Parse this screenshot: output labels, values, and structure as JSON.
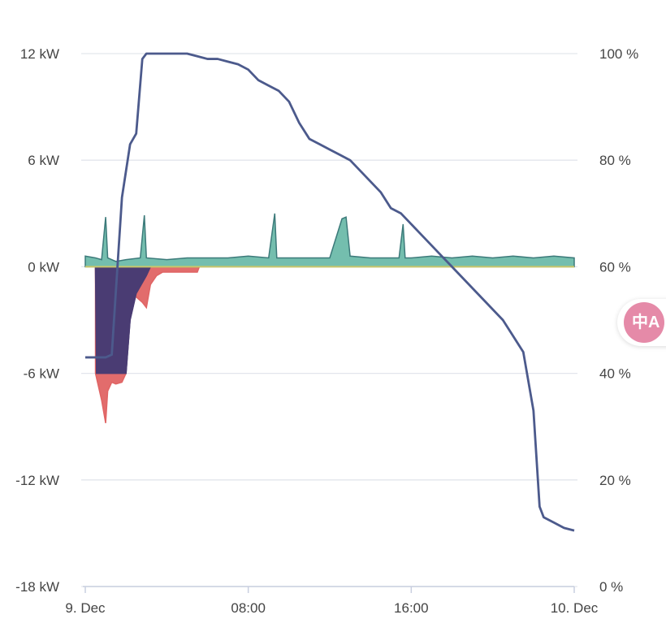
{
  "chart_data": {
    "type": "area",
    "title": "",
    "x_ticks": [
      "9. Dec",
      "08:00",
      "16:00",
      "10. Dec"
    ],
    "x_range": [
      "9. Dec 00:00",
      "10. Dec 00:00"
    ],
    "y_left": {
      "ticks": [
        "12 kW",
        "6 kW",
        "0 kW",
        "-6 kW",
        "-12 kW",
        "-18 kW"
      ],
      "min": -18,
      "max": 12,
      "unit": "kW"
    },
    "y_right": {
      "ticks": [
        "100 %",
        "80 %",
        "60 %",
        "40 %",
        "20 %",
        "0 %"
      ],
      "min": 0,
      "max": 100,
      "unit": "%"
    },
    "grid": true,
    "colors": {
      "battery_soc": "#4c5a8c",
      "purple_area": "#4a3c73",
      "red_area": "#e06464",
      "teal_area": "#5cb3a0",
      "dark_teal": "#3c7a7a",
      "zero_line": "#c9c66a",
      "grid": "#e3e6ec"
    },
    "series": [
      {
        "axis": "right",
        "style": "line",
        "color": "#4c5a8c",
        "points": [
          [
            0,
            43
          ],
          [
            0.5,
            43
          ],
          [
            1,
            43
          ],
          [
            1.3,
            43.5
          ],
          [
            1.8,
            73
          ],
          [
            2.2,
            83
          ],
          [
            2.5,
            85
          ],
          [
            2.8,
            99
          ],
          [
            3,
            100
          ],
          [
            3.2,
            100
          ],
          [
            3.8,
            100
          ],
          [
            4.5,
            100
          ],
          [
            5,
            100
          ],
          [
            5.5,
            99.5
          ],
          [
            6,
            99
          ],
          [
            6.5,
            99
          ],
          [
            7,
            98.5
          ],
          [
            7.5,
            98
          ],
          [
            8,
            97
          ],
          [
            8.5,
            95
          ],
          [
            9,
            94
          ],
          [
            9.5,
            93
          ],
          [
            10,
            91
          ],
          [
            10.5,
            87
          ],
          [
            11,
            84
          ],
          [
            11.5,
            83
          ],
          [
            12,
            82
          ],
          [
            12.5,
            81
          ],
          [
            13,
            80
          ],
          [
            13.5,
            78
          ],
          [
            14,
            76
          ],
          [
            14.5,
            74
          ],
          [
            15,
            71
          ],
          [
            15.5,
            70
          ],
          [
            16,
            68
          ],
          [
            16.5,
            66
          ],
          [
            17,
            64
          ],
          [
            17.5,
            62
          ],
          [
            18,
            60
          ],
          [
            18.5,
            58
          ],
          [
            19,
            56
          ],
          [
            19.5,
            54
          ],
          [
            20,
            52
          ],
          [
            20.5,
            50
          ],
          [
            21,
            47
          ],
          [
            21.5,
            44
          ],
          [
            22,
            33
          ],
          [
            22.3,
            15
          ],
          [
            22.5,
            13
          ],
          [
            23,
            12
          ],
          [
            23.5,
            11
          ],
          [
            24,
            10.5
          ]
        ]
      },
      {
        "axis": "left",
        "style": "area",
        "color": "#4a3c73",
        "points": [
          [
            0.5,
            0
          ],
          [
            0.55,
            -6
          ],
          [
            2,
            -6
          ],
          [
            2.2,
            -3
          ],
          [
            2.5,
            -1.5
          ],
          [
            3,
            -0.5
          ],
          [
            3.2,
            0
          ]
        ]
      },
      {
        "axis": "left",
        "style": "area",
        "color": "#e06464",
        "points": [
          [
            0.5,
            -6
          ],
          [
            0.6,
            -6.5
          ],
          [
            0.8,
            -7.5
          ],
          [
            1,
            -8.8
          ],
          [
            1.1,
            -7
          ],
          [
            1.3,
            -6.5
          ],
          [
            1.5,
            -6.6
          ],
          [
            1.8,
            -6.5
          ],
          [
            2,
            -6
          ],
          [
            2,
            -3
          ],
          [
            2.3,
            -1.5
          ],
          [
            2.6,
            -1.8
          ],
          [
            2.8,
            -2
          ],
          [
            3,
            -2.3
          ],
          [
            3.2,
            -1
          ],
          [
            3.5,
            -0.5
          ],
          [
            3.8,
            -0.3
          ],
          [
            4.5,
            -0.3
          ],
          [
            5.5,
            -0.3
          ],
          [
            5.6,
            0
          ]
        ]
      },
      {
        "axis": "left",
        "style": "area",
        "color": "#5cb3a0",
        "points": [
          [
            0,
            0.6
          ],
          [
            0.5,
            0.5
          ],
          [
            0.8,
            0.4
          ],
          [
            1,
            2.8
          ],
          [
            1.1,
            0.5
          ],
          [
            1.5,
            0.3
          ],
          [
            2,
            0.4
          ],
          [
            2.7,
            0.5
          ],
          [
            2.9,
            2.9
          ],
          [
            3,
            0.5
          ],
          [
            4,
            0.4
          ],
          [
            5,
            0.5
          ],
          [
            6,
            0.5
          ],
          [
            7,
            0.5
          ],
          [
            8,
            0.6
          ],
          [
            9,
            0.5
          ],
          [
            9.3,
            3
          ],
          [
            9.4,
            0.5
          ],
          [
            10,
            0.5
          ],
          [
            11,
            0.5
          ],
          [
            12,
            0.5
          ],
          [
            12.6,
            2.7
          ],
          [
            12.8,
            2.8
          ],
          [
            13,
            0.6
          ],
          [
            14,
            0.5
          ],
          [
            15.4,
            0.5
          ],
          [
            15.6,
            2.4
          ],
          [
            15.7,
            0.5
          ],
          [
            16,
            0.5
          ],
          [
            17,
            0.6
          ],
          [
            18,
            0.5
          ],
          [
            19,
            0.6
          ],
          [
            20,
            0.5
          ],
          [
            21,
            0.6
          ],
          [
            22,
            0.5
          ],
          [
            23,
            0.6
          ],
          [
            24,
            0.5
          ]
        ]
      }
    ]
  },
  "ui": {
    "translate_button_glyph": "中A"
  }
}
